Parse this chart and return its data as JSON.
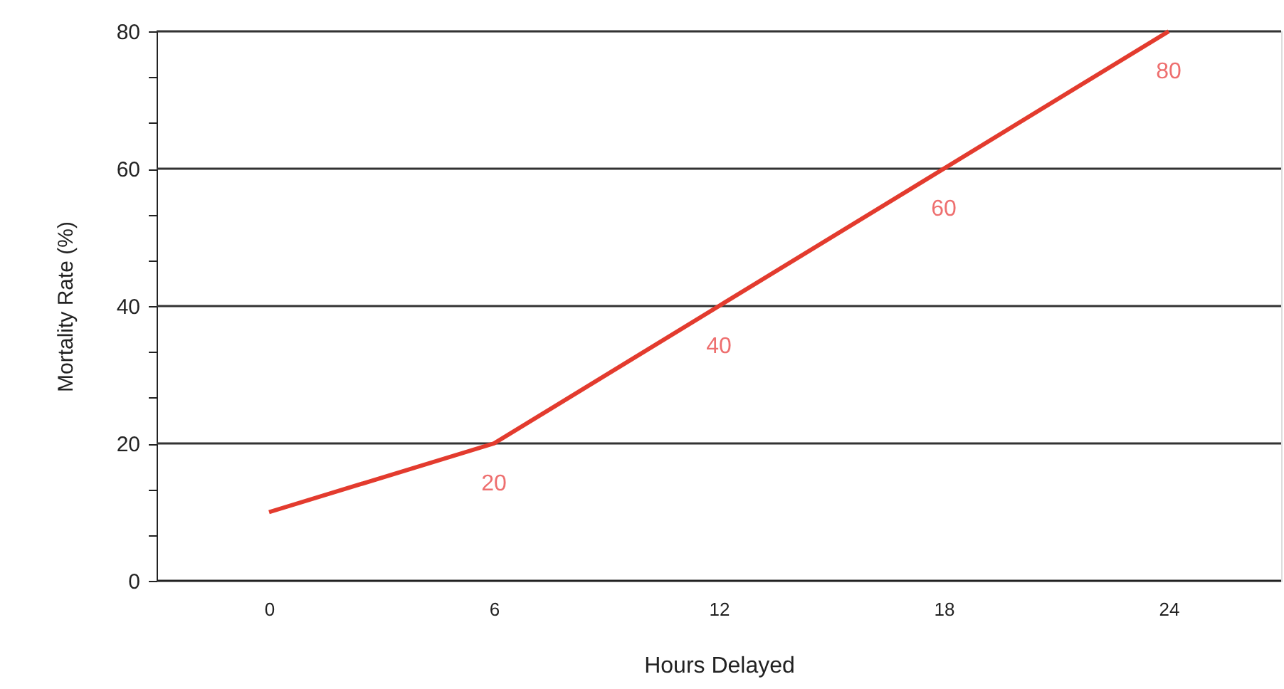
{
  "chart_data": {
    "type": "line",
    "xlabel": "Hours Delayed",
    "ylabel": "Mortality Rate (%)",
    "categories": [
      "0",
      "6",
      "12",
      "18",
      "24"
    ],
    "series": [
      {
        "color": "#e33b2e",
        "values": [
          10,
          20,
          40,
          60,
          80
        ],
        "value_labels": [
          null,
          "20",
          "40",
          "60",
          "80"
        ]
      }
    ],
    "ylim": [
      0,
      80
    ],
    "yticks": [
      0,
      {
        "value": 6.7,
        "label": null
      },
      {
        "value": 13.3,
        "label": null
      },
      20,
      {
        "value": 26.7,
        "label": null
      },
      {
        "value": 33.3,
        "label": null
      },
      40,
      {
        "value": 46.7,
        "label": null
      },
      {
        "value": 53.3,
        "label": null
      },
      60,
      {
        "value": 66.7,
        "label": null
      },
      {
        "value": 73.3,
        "label": null
      },
      80
    ],
    "grid": "y",
    "marker": "none",
    "line_style": "solid"
  }
}
